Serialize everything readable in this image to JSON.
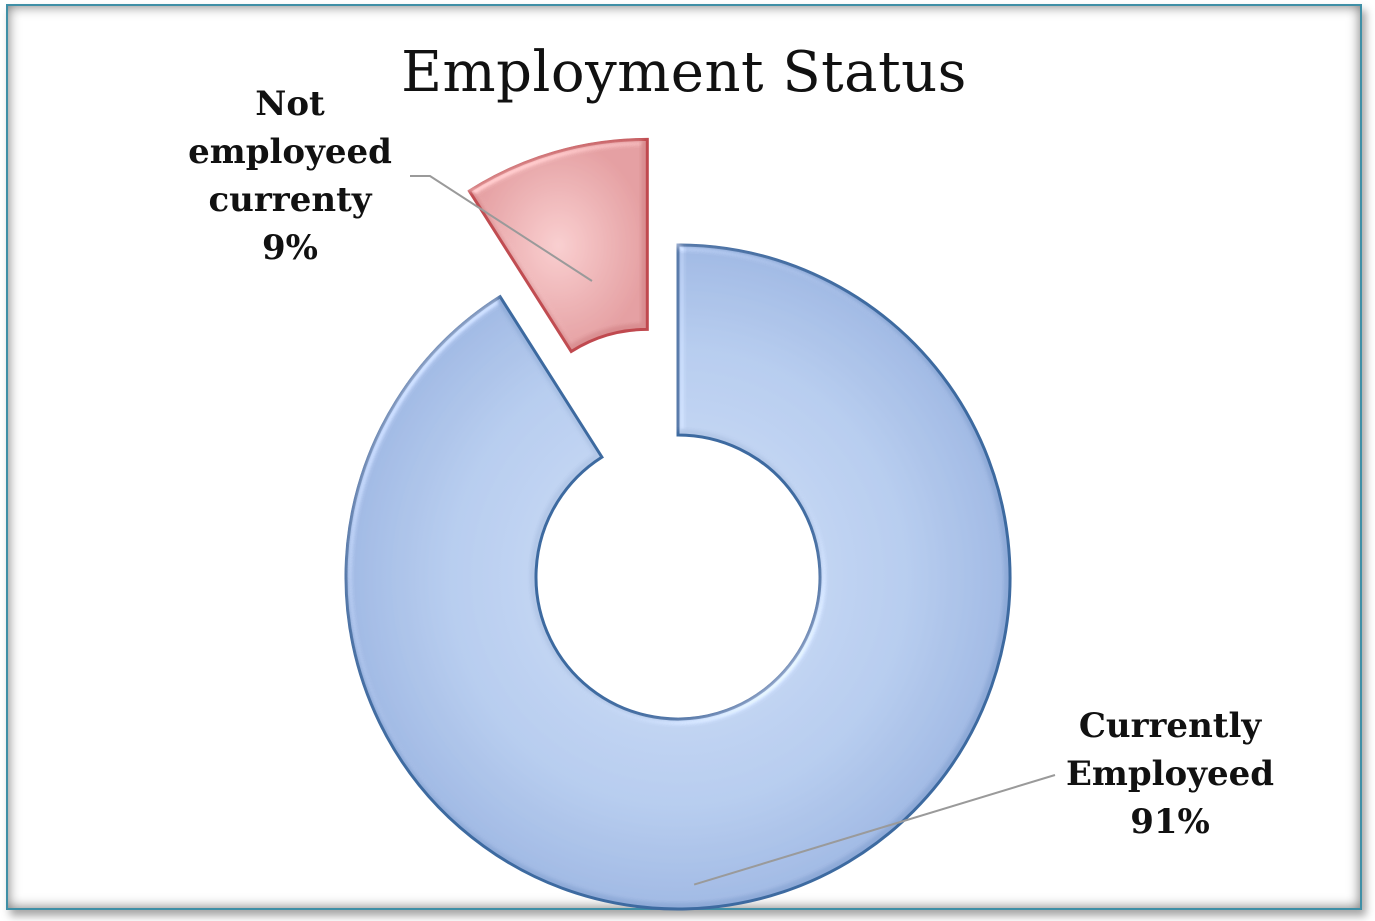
{
  "chart_data": {
    "type": "pie",
    "variant": "donut",
    "title": "Employment Status",
    "slices": [
      {
        "label_lines": [
          "Currently",
          "Employeed"
        ],
        "value": 91,
        "value_label": "91%",
        "color": "#a4bde3",
        "edge_color": "#3d6aa0",
        "exploded": false
      },
      {
        "label_lines": [
          "Not",
          "employeed",
          "currenty"
        ],
        "value": 9,
        "value_label": "9%",
        "color": "#e3a3a5",
        "edge_color": "#c04a4f",
        "exploded": true
      }
    ],
    "legend": "none"
  }
}
